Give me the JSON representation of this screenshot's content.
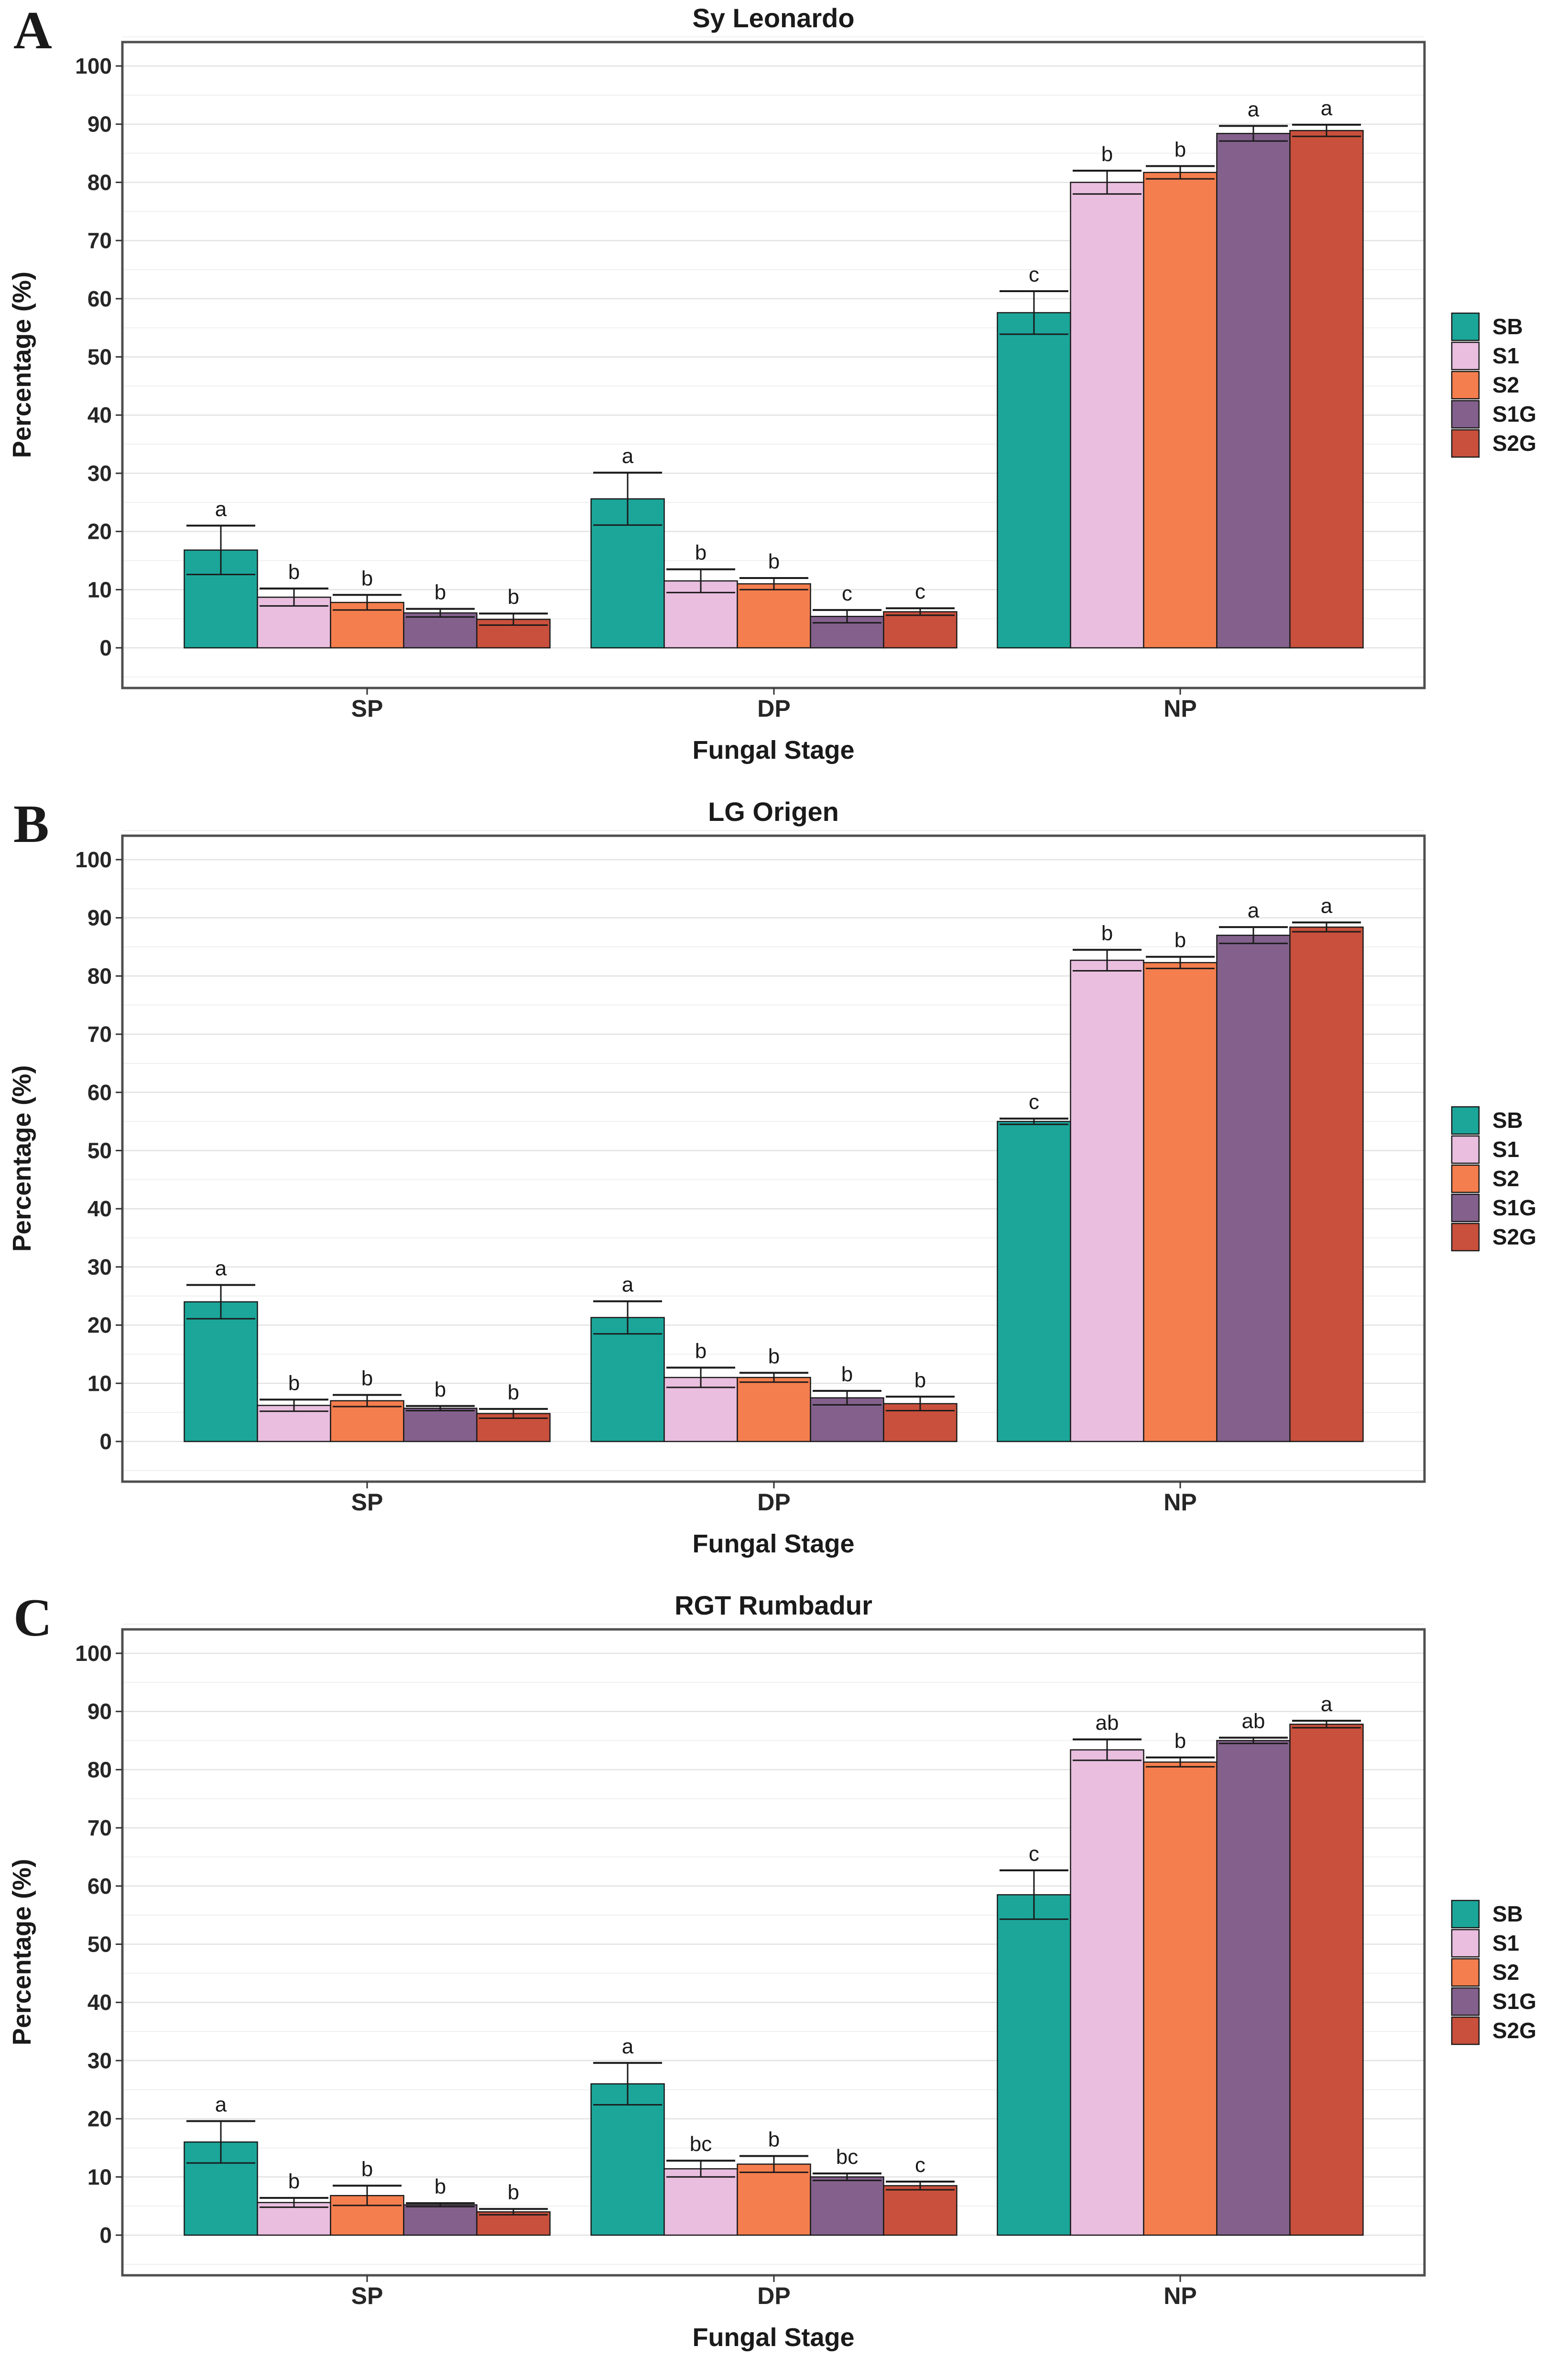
{
  "figure": {
    "y_axis_label": "Percentage (%)",
    "x_axis_label": "Fungal Stage",
    "categories": [
      "SP",
      "DP",
      "NP"
    ],
    "legend": [
      "SB",
      "S1",
      "S2",
      "S1G",
      "S2G"
    ],
    "colors": {
      "SB": "#1CA69A",
      "S1": "#E9BEDF",
      "S2": "#F57E4E",
      "S1G": "#83618C",
      "S2G": "#C9503C",
      "bar_outline": "#1a1a1a",
      "plot_border": "#4f4f4f",
      "grid_major": "#e2e2e2",
      "grid_minor": "#efefef"
    }
  },
  "chart_data": [
    {
      "type": "bar",
      "panel_label": "A",
      "title": "Sy Leonardo",
      "xlabel": "Fungal Stage",
      "ylabel": "Percentage (%)",
      "categories": [
        "SP",
        "DP",
        "NP"
      ],
      "ylim": [
        0,
        100
      ],
      "yticks": [
        0,
        10,
        20,
        30,
        40,
        50,
        60,
        70,
        80,
        90,
        100
      ],
      "grid": true,
      "legend_position": "right",
      "series": [
        {
          "name": "SB",
          "color": "#1CA69A",
          "values": [
            16.8,
            25.6,
            57.6
          ],
          "errors": [
            4.2,
            4.5,
            3.7
          ],
          "sig_letters": [
            "a",
            "a",
            "c"
          ]
        },
        {
          "name": "S1",
          "color": "#E9BEDF",
          "values": [
            8.7,
            11.5,
            80.0
          ],
          "errors": [
            1.5,
            2.0,
            2.0
          ],
          "sig_letters": [
            "b",
            "b",
            "b"
          ]
        },
        {
          "name": "S2",
          "color": "#F57E4E",
          "values": [
            7.8,
            11.0,
            81.7
          ],
          "errors": [
            1.3,
            1.0,
            1.1
          ],
          "sig_letters": [
            "b",
            "b",
            "b"
          ]
        },
        {
          "name": "S1G",
          "color": "#83618C",
          "values": [
            6.0,
            5.4,
            88.4
          ],
          "errors": [
            0.7,
            1.1,
            1.3
          ],
          "sig_letters": [
            "b",
            "c",
            "a"
          ]
        },
        {
          "name": "S2G",
          "color": "#C9503C",
          "values": [
            4.9,
            6.2,
            88.9
          ],
          "errors": [
            1.0,
            0.6,
            1.0
          ],
          "sig_letters": [
            "b",
            "c",
            "a"
          ]
        }
      ]
    },
    {
      "type": "bar",
      "panel_label": "B",
      "title": "LG Origen",
      "xlabel": "Fungal Stage",
      "ylabel": "Percentage (%)",
      "categories": [
        "SP",
        "DP",
        "NP"
      ],
      "ylim": [
        0,
        100
      ],
      "yticks": [
        0,
        10,
        20,
        30,
        40,
        50,
        60,
        70,
        80,
        90,
        100
      ],
      "grid": true,
      "legend_position": "right",
      "series": [
        {
          "name": "SB",
          "color": "#1CA69A",
          "values": [
            24.0,
            21.3,
            55.0
          ],
          "errors": [
            2.9,
            2.8,
            0.5
          ],
          "sig_letters": [
            "a",
            "a",
            "c"
          ]
        },
        {
          "name": "S1",
          "color": "#E9BEDF",
          "values": [
            6.2,
            11.0,
            82.7
          ],
          "errors": [
            1.0,
            1.7,
            1.8
          ],
          "sig_letters": [
            "b",
            "b",
            "b"
          ]
        },
        {
          "name": "S2",
          "color": "#F57E4E",
          "values": [
            7.0,
            11.0,
            82.3
          ],
          "errors": [
            1.0,
            0.8,
            1.0
          ],
          "sig_letters": [
            "b",
            "b",
            "b"
          ]
        },
        {
          "name": "S1G",
          "color": "#83618C",
          "values": [
            5.7,
            7.5,
            87.0
          ],
          "errors": [
            0.4,
            1.2,
            1.4
          ],
          "sig_letters": [
            "b",
            "b",
            "a"
          ]
        },
        {
          "name": "S2G",
          "color": "#C9503C",
          "values": [
            4.8,
            6.5,
            88.4
          ],
          "errors": [
            0.8,
            1.2,
            0.8
          ],
          "sig_letters": [
            "b",
            "b",
            "a"
          ]
        }
      ]
    },
    {
      "type": "bar",
      "panel_label": "C",
      "title": "RGT Rumbadur",
      "xlabel": "Fungal Stage",
      "ylabel": "Percentage (%)",
      "categories": [
        "SP",
        "DP",
        "NP"
      ],
      "ylim": [
        0,
        100
      ],
      "yticks": [
        0,
        10,
        20,
        30,
        40,
        50,
        60,
        70,
        80,
        90,
        100
      ],
      "grid": true,
      "legend_position": "right",
      "series": [
        {
          "name": "SB",
          "color": "#1CA69A",
          "values": [
            16.0,
            26.0,
            58.5
          ],
          "errors": [
            3.6,
            3.6,
            4.2
          ],
          "sig_letters": [
            "a",
            "a",
            "c"
          ]
        },
        {
          "name": "S1",
          "color": "#E9BEDF",
          "values": [
            5.6,
            11.4,
            83.4
          ],
          "errors": [
            0.8,
            1.4,
            1.8
          ],
          "sig_letters": [
            "b",
            "bc",
            "ab"
          ]
        },
        {
          "name": "S2",
          "color": "#F57E4E",
          "values": [
            6.8,
            12.2,
            81.3
          ],
          "errors": [
            1.7,
            1.4,
            0.8
          ],
          "sig_letters": [
            "b",
            "b",
            "b"
          ]
        },
        {
          "name": "S1G",
          "color": "#83618C",
          "values": [
            5.2,
            10.0,
            85.0
          ],
          "errors": [
            0.3,
            0.6,
            0.5
          ],
          "sig_letters": [
            "b",
            "bc",
            "ab"
          ]
        },
        {
          "name": "S2G",
          "color": "#C9503C",
          "values": [
            4.0,
            8.5,
            87.8
          ],
          "errors": [
            0.5,
            0.7,
            0.6
          ],
          "sig_letters": [
            "b",
            "c",
            "a"
          ]
        }
      ]
    }
  ]
}
